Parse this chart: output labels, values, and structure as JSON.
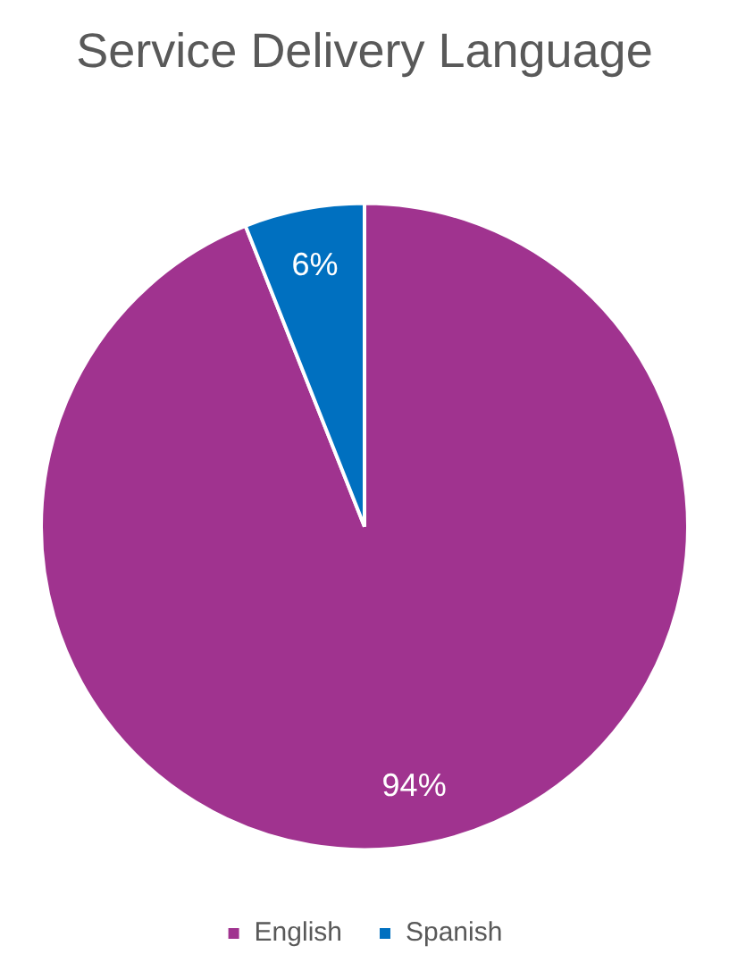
{
  "chart_data": {
    "type": "pie",
    "title": "Service Delivery Language",
    "categories": [
      "English",
      "Spanish"
    ],
    "values": [
      94,
      6
    ],
    "colors": [
      "#a0338f",
      "#0070c0"
    ],
    "value_labels": [
      "94%",
      "6%"
    ],
    "legend": "bottom"
  }
}
